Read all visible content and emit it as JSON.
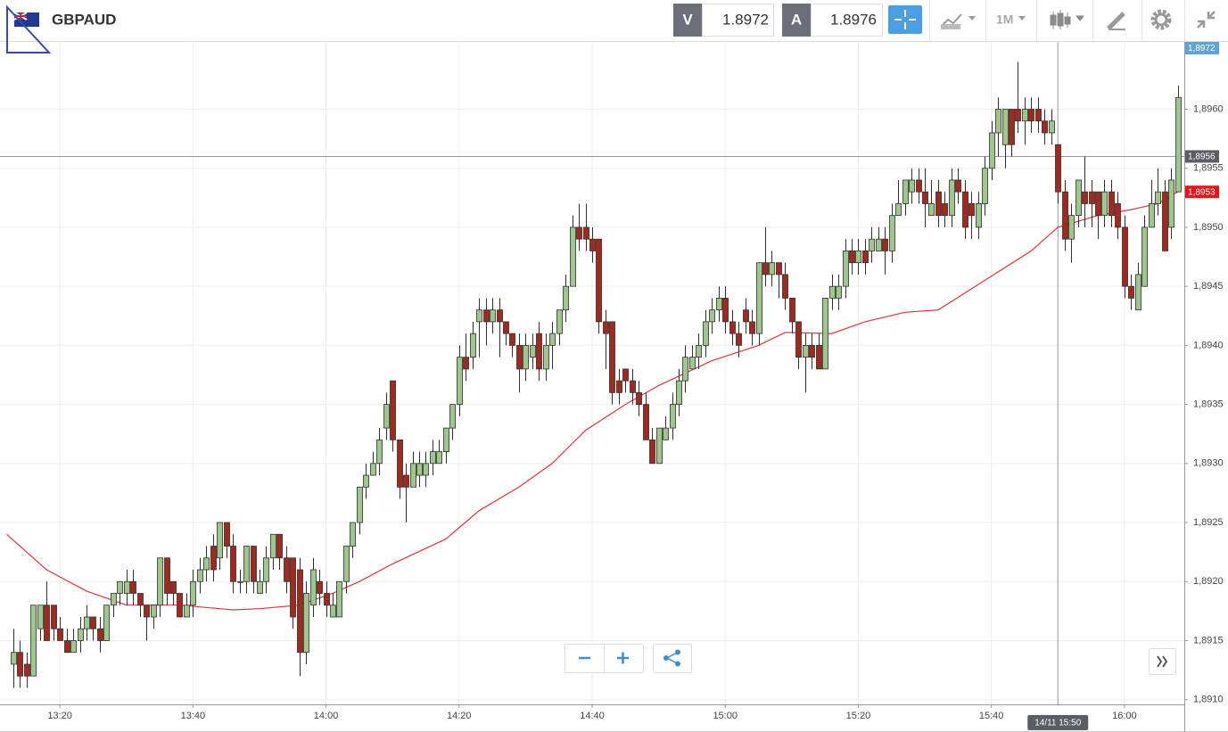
{
  "toolbar": {
    "symbol": "GBPAUD",
    "bid_label": "V",
    "bid": 1.8972,
    "ask_label": "A",
    "ask": 1.8976,
    "timeframe": "1M"
  },
  "chart_data": {
    "type": "candlestick",
    "up_color": "#9dc78b",
    "down_color": "#a3281d",
    "outline_color": "#2e2e2e",
    "grid": true,
    "x": [
      "13:13",
      "13:14",
      "13:15",
      "13:16",
      "13:17",
      "13:18",
      "13:19",
      "13:20",
      "13:21",
      "13:22",
      "13:23",
      "13:24",
      "13:25",
      "13:26",
      "13:27",
      "13:28",
      "13:29",
      "13:30",
      "13:31",
      "13:32",
      "13:33",
      "13:34",
      "13:35",
      "13:36",
      "13:37",
      "13:38",
      "13:39",
      "13:40",
      "13:41",
      "13:42",
      "13:43",
      "13:44",
      "13:45",
      "13:46",
      "13:47",
      "13:48",
      "13:49",
      "13:50",
      "13:51",
      "13:52",
      "13:53",
      "13:54",
      "13:55",
      "13:56",
      "13:57",
      "13:58",
      "13:59",
      "14:00",
      "14:01",
      "14:02",
      "14:03",
      "14:04",
      "14:05",
      "14:06",
      "14:07",
      "14:08",
      "14:09",
      "14:10",
      "14:11",
      "14:12",
      "14:13",
      "14:14",
      "14:15",
      "14:16",
      "14:17",
      "14:18",
      "14:19",
      "14:20",
      "14:21",
      "14:22",
      "14:23",
      "14:24",
      "14:25",
      "14:26",
      "14:27",
      "14:28",
      "14:29",
      "14:30",
      "14:31",
      "14:32",
      "14:33",
      "14:34",
      "14:35",
      "14:36",
      "14:37",
      "14:38",
      "14:39",
      "14:40",
      "14:41",
      "14:42",
      "14:43",
      "14:44",
      "14:45",
      "14:46",
      "14:47",
      "14:48",
      "14:49",
      "14:50",
      "14:51",
      "14:52",
      "14:53",
      "14:54",
      "14:55",
      "14:56",
      "14:57",
      "14:58",
      "14:59",
      "15:00",
      "15:01",
      "15:02",
      "15:03",
      "15:04",
      "15:05",
      "15:06",
      "15:07",
      "15:08",
      "15:09",
      "15:10",
      "15:11",
      "15:12",
      "15:13",
      "15:14",
      "15:15",
      "15:16",
      "15:17",
      "15:18",
      "15:19",
      "15:20",
      "15:21",
      "15:22",
      "15:23",
      "15:24",
      "15:25",
      "15:26",
      "15:27",
      "15:28",
      "15:29",
      "15:30",
      "15:31",
      "15:32",
      "15:33",
      "15:34",
      "15:35",
      "15:36",
      "15:37",
      "15:38",
      "15:39",
      "15:40",
      "15:41",
      "15:42",
      "15:43",
      "15:44",
      "15:45",
      "15:46",
      "15:47",
      "15:48",
      "15:49",
      "15:50",
      "15:51",
      "15:52",
      "15:53",
      "15:54",
      "15:55",
      "15:56",
      "15:57",
      "15:58",
      "15:59",
      "16:00",
      "16:01",
      "16:02",
      "16:03",
      "16:04",
      "16:05",
      "16:06",
      "16:07",
      "16:08"
    ],
    "open": [
      1.8913,
      1.8914,
      1.8913,
      1.8912,
      1.8916,
      1.8918,
      1.8918,
      1.8916,
      1.8915,
      1.8914,
      1.8915,
      1.8916,
      1.8917,
      1.8916,
      1.8915,
      1.8918,
      1.8919,
      1.8919,
      1.892,
      1.8919,
      1.8918,
      1.8917,
      1.8918,
      1.8922,
      1.892,
      1.8919,
      1.8917,
      1.8918,
      1.892,
      1.8921,
      1.8923,
      1.8922,
      1.8925,
      1.8923,
      1.892,
      1.892,
      1.8923,
      1.8919,
      1.892,
      1.8922,
      1.8924,
      1.8922,
      1.8922,
      1.8921,
      1.8914,
      1.8918,
      1.892,
      1.8919,
      1.8917,
      1.8917,
      1.892,
      1.8923,
      1.8925,
      1.8928,
      1.8929,
      1.893,
      1.8933,
      1.8937,
      1.8932,
      1.8929,
      1.8928,
      1.8929,
      1.8929,
      1.893,
      1.893,
      1.8931,
      1.8933,
      1.8935,
      1.8939,
      1.8939,
      1.8942,
      1.8943,
      1.8942,
      1.8943,
      1.8942,
      1.8941,
      1.894,
      1.8938,
      1.8939,
      1.8941,
      1.8938,
      1.894,
      1.8941,
      1.8943,
      1.8945,
      1.895,
      1.895,
      1.8949,
      1.8949,
      1.8942,
      1.8942,
      1.8937,
      1.8938,
      1.8937,
      1.8936,
      1.8935,
      1.8932,
      1.893,
      1.8932,
      1.8933,
      1.8935,
      1.8937,
      1.8938,
      1.8939,
      1.894,
      1.8942,
      1.8943,
      1.8944,
      1.8942,
      1.8941,
      1.8943,
      1.8942,
      1.8941,
      1.8947,
      1.8946,
      1.8947,
      1.8946,
      1.8944,
      1.8942,
      1.8939,
      1.894,
      1.894,
      1.8938,
      1.8944,
      1.8944,
      1.8945,
      1.8948,
      1.8947,
      1.8948,
      1.8948,
      1.8948,
      1.8949,
      1.8948,
      1.8951,
      1.8952,
      1.8953,
      1.8954,
      1.8953,
      1.8951,
      1.8953,
      1.8952,
      1.8951,
      1.8954,
      1.8953,
      1.8952,
      1.895,
      1.8952,
      1.8955,
      1.8958,
      1.8957,
      1.896,
      1.896,
      1.8959,
      1.896,
      1.896,
      1.8959,
      1.8958,
      1.8957,
      1.8953,
      1.8949,
      1.8951,
      1.8953,
      1.8953,
      1.8953,
      1.8951,
      1.8953,
      1.8952,
      1.895,
      1.8945,
      1.8943,
      1.8945,
      1.895,
      1.8952,
      1.8953,
      1.895,
      1.8953
    ],
    "high": [
      1.8916,
      1.8915,
      1.8914,
      1.8918,
      1.8918,
      1.892,
      1.8918,
      1.8917,
      1.8916,
      1.8916,
      1.8917,
      1.8918,
      1.8917,
      1.8917,
      1.8918,
      1.8919,
      1.892,
      1.8921,
      1.8921,
      1.8919,
      1.8918,
      1.8918,
      1.8922,
      1.8922,
      1.892,
      1.8919,
      1.8919,
      1.8921,
      1.8922,
      1.8923,
      1.8924,
      1.8925,
      1.8925,
      1.8924,
      1.8921,
      1.8923,
      1.8923,
      1.8921,
      1.8923,
      1.8924,
      1.8924,
      1.8923,
      1.8922,
      1.8922,
      1.892,
      1.8922,
      1.8921,
      1.892,
      1.8919,
      1.892,
      1.8923,
      1.8925,
      1.8928,
      1.893,
      1.8931,
      1.8933,
      1.8936,
      1.8937,
      1.8932,
      1.893,
      1.8931,
      1.8931,
      1.8931,
      1.8932,
      1.8932,
      1.8933,
      1.8935,
      1.894,
      1.8941,
      1.8942,
      1.8944,
      1.8944,
      1.8944,
      1.8944,
      1.8942,
      1.8941,
      1.8941,
      1.8941,
      1.8941,
      1.8942,
      1.8941,
      1.8942,
      1.8943,
      1.8946,
      1.8951,
      1.8952,
      1.8952,
      1.895,
      1.8949,
      1.8943,
      1.8942,
      1.8938,
      1.8938,
      1.8938,
      1.8937,
      1.8936,
      1.8933,
      1.8933,
      1.8934,
      1.8936,
      1.8938,
      1.894,
      1.894,
      1.8941,
      1.8943,
      1.8944,
      1.8945,
      1.8945,
      1.8943,
      1.8942,
      1.8944,
      1.8943,
      1.8947,
      1.895,
      1.8948,
      1.8947,
      1.8947,
      1.8944,
      1.8942,
      1.8941,
      1.8941,
      1.8941,
      1.8944,
      1.8946,
      1.8946,
      1.8949,
      1.8949,
      1.8949,
      1.8949,
      1.895,
      1.895,
      1.895,
      1.8952,
      1.8954,
      1.8954,
      1.8955,
      1.8955,
      1.8955,
      1.8954,
      1.8954,
      1.8953,
      1.8955,
      1.8955,
      1.8954,
      1.8953,
      1.8953,
      1.8956,
      1.8959,
      1.8961,
      1.896,
      1.896,
      1.8964,
      1.8961,
      1.8961,
      1.8961,
      1.896,
      1.896,
      1.8957,
      1.8954,
      1.8952,
      1.8954,
      1.8956,
      1.8954,
      1.8953,
      1.8954,
      1.8954,
      1.8953,
      1.8951,
      1.8946,
      1.8947,
      1.8951,
      1.8954,
      1.8955,
      1.8954,
      1.8955,
      1.8962
    ],
    "low": [
      1.8911,
      1.8911,
      1.8911,
      1.8912,
      1.8915,
      1.8915,
      1.8915,
      1.8915,
      1.8914,
      1.8914,
      1.8914,
      1.8915,
      1.8915,
      1.8914,
      1.8915,
      1.8917,
      1.8918,
      1.8918,
      1.8918,
      1.8917,
      1.8915,
      1.8916,
      1.8917,
      1.8918,
      1.8918,
      1.8917,
      1.8917,
      1.8917,
      1.8919,
      1.892,
      1.892,
      1.8921,
      1.8922,
      1.8919,
      1.8919,
      1.8919,
      1.8919,
      1.8919,
      1.8919,
      1.8921,
      1.8921,
      1.8919,
      1.8916,
      1.8912,
      1.8913,
      1.8917,
      1.8918,
      1.8917,
      1.8917,
      1.8917,
      1.8919,
      1.8922,
      1.8924,
      1.8927,
      1.8929,
      1.8929,
      1.8932,
      1.8931,
      1.8927,
      1.8925,
      1.8928,
      1.8928,
      1.8928,
      1.8929,
      1.893,
      1.893,
      1.8932,
      1.8934,
      1.8937,
      1.8938,
      1.8939,
      1.894,
      1.8941,
      1.8939,
      1.894,
      1.8939,
      1.8936,
      1.8937,
      1.8938,
      1.8937,
      1.8937,
      1.8938,
      1.894,
      1.8942,
      1.8945,
      1.8948,
      1.8948,
      1.8947,
      1.8941,
      1.8938,
      1.8935,
      1.8935,
      1.8936,
      1.8935,
      1.8934,
      1.8932,
      1.893,
      1.893,
      1.8932,
      1.8932,
      1.8934,
      1.8936,
      1.8938,
      1.8938,
      1.8939,
      1.8941,
      1.8942,
      1.8941,
      1.894,
      1.8939,
      1.8941,
      1.894,
      1.894,
      1.8945,
      1.8945,
      1.8944,
      1.8943,
      1.8941,
      1.8938,
      1.8936,
      1.8938,
      1.8938,
      1.8938,
      1.8943,
      1.8943,
      1.8944,
      1.8946,
      1.8946,
      1.8946,
      1.8947,
      1.8948,
      1.8946,
      1.8947,
      1.8951,
      1.8951,
      1.8952,
      1.8952,
      1.895,
      1.8951,
      1.895,
      1.895,
      1.895,
      1.8952,
      1.8949,
      1.8949,
      1.8949,
      1.8951,
      1.8954,
      1.8956,
      1.8955,
      1.8956,
      1.8958,
      1.8957,
      1.8958,
      1.8958,
      1.8957,
      1.8957,
      1.8952,
      1.8948,
      1.8947,
      1.895,
      1.895,
      1.895,
      1.8949,
      1.895,
      1.895,
      1.8949,
      1.8944,
      1.8943,
      1.8943,
      1.8945,
      1.895,
      1.8951,
      1.8948,
      1.8949,
      1.8953
    ],
    "close": [
      1.8914,
      1.8912,
      1.8912,
      1.8918,
      1.8918,
      1.8915,
      1.8916,
      1.8915,
      1.8914,
      1.8915,
      1.8916,
      1.8917,
      1.8916,
      1.8915,
      1.8918,
      1.8919,
      1.892,
      1.892,
      1.8919,
      1.8918,
      1.8917,
      1.8918,
      1.8922,
      1.8919,
      1.8919,
      1.8917,
      1.8918,
      1.892,
      1.8921,
      1.8922,
      1.8921,
      1.8925,
      1.8923,
      1.892,
      1.892,
      1.8923,
      1.892,
      1.892,
      1.8922,
      1.8924,
      1.8922,
      1.892,
      1.8917,
      1.8914,
      1.8919,
      1.8921,
      1.8919,
      1.8918,
      1.8918,
      1.892,
      1.8923,
      1.8925,
      1.8928,
      1.8929,
      1.893,
      1.8932,
      1.8935,
      1.8932,
      1.8928,
      1.8928,
      1.893,
      1.893,
      1.893,
      1.8931,
      1.8931,
      1.8933,
      1.8935,
      1.8939,
      1.8938,
      1.8941,
      1.8943,
      1.8942,
      1.8943,
      1.8942,
      1.8941,
      1.894,
      1.8938,
      1.894,
      1.894,
      1.8938,
      1.894,
      1.8941,
      1.8943,
      1.8945,
      1.895,
      1.8949,
      1.8949,
      1.8948,
      1.8942,
      1.8941,
      1.8936,
      1.8936,
      1.8937,
      1.8936,
      1.8935,
      1.8932,
      1.893,
      1.8933,
      1.8933,
      1.8935,
      1.8937,
      1.8939,
      1.8939,
      1.894,
      1.8942,
      1.8943,
      1.8944,
      1.8942,
      1.8941,
      1.894,
      1.8942,
      1.8941,
      1.8947,
      1.8946,
      1.8947,
      1.8946,
      1.8944,
      1.8942,
      1.8939,
      1.894,
      1.8939,
      1.8938,
      1.8944,
      1.8945,
      1.8945,
      1.8948,
      1.8947,
      1.8948,
      1.8947,
      1.8949,
      1.8949,
      1.8948,
      1.8951,
      1.8952,
      1.8954,
      1.8954,
      1.8953,
      1.8952,
      1.8952,
      1.8951,
      1.8951,
      1.8954,
      1.8953,
      1.895,
      1.8951,
      1.8952,
      1.8955,
      1.8958,
      1.896,
      1.896,
      1.8957,
      1.8959,
      1.896,
      1.8959,
      1.8959,
      1.8958,
      1.8959,
      1.8953,
      1.8949,
      1.8951,
      1.8954,
      1.8952,
      1.8952,
      1.8951,
      1.8953,
      1.8951,
      1.895,
      1.8945,
      1.8944,
      1.8946,
      1.895,
      1.8952,
      1.8953,
      1.8948,
      1.8954,
      1.8961
    ],
    "ma": {
      "color": "#e2343a",
      "x": [
        "13:12",
        "13:18",
        "13:24",
        "13:30",
        "13:38",
        "13:46",
        "13:50",
        "13:56",
        "14:01",
        "14:05",
        "14:10",
        "14:18",
        "14:23",
        "14:29",
        "14:34",
        "14:39",
        "14:45",
        "14:50",
        "14:58",
        "15:05",
        "15:09",
        "15:16",
        "15:21",
        "15:27",
        "15:32",
        "15:39",
        "15:46",
        "15:50",
        "15:56",
        "16:01",
        "16:05",
        "16:08"
      ],
      "values": [
        1.8924,
        1.8921,
        1.89192,
        1.8918,
        1.8918,
        1.89176,
        1.89177,
        1.8918,
        1.8919,
        1.892,
        1.89215,
        1.89236,
        1.8926,
        1.8928,
        1.893,
        1.89328,
        1.8935,
        1.89366,
        1.89387,
        1.894,
        1.89411,
        1.8941,
        1.8942,
        1.89428,
        1.8943,
        1.89455,
        1.8948,
        1.895,
        1.8951,
        1.89515,
        1.8952,
        1.8953
      ]
    },
    "xlim": [
      "13:11",
      "16:09"
    ],
    "xticks": [
      "13:20",
      "13:40",
      "14:00",
      "14:20",
      "14:40",
      "15:00",
      "15:20",
      "15:40",
      "16:00"
    ],
    "ylim": [
      1.89096,
      1.89657
    ],
    "yticks": [
      {
        "value": 1.891,
        "label": "1,8910"
      },
      {
        "value": 1.8915,
        "label": "1,8915"
      },
      {
        "value": 1.892,
        "label": "1,8920"
      },
      {
        "value": 1.8925,
        "label": "1,8925"
      },
      {
        "value": 1.893,
        "label": "1,8930"
      },
      {
        "value": 1.8935,
        "label": "1,8935"
      },
      {
        "value": 1.894,
        "label": "1,8940"
      },
      {
        "value": 1.8945,
        "label": "1,8945"
      },
      {
        "value": 1.895,
        "label": "1,8950"
      },
      {
        "value": 1.8955,
        "label": "1,8955"
      },
      {
        "value": 1.896,
        "label": "1,8960"
      }
    ],
    "bid_marker": {
      "value": 1.8972,
      "label": "1,8972",
      "color": "#5aa6dc"
    },
    "ma_marker": {
      "value": 1.8953,
      "label": "1,8953",
      "color": "#e8141c"
    },
    "crosshair": {
      "y": {
        "value": 1.8956,
        "label": "1,8956"
      },
      "x": {
        "value": "15:50",
        "label": "14/11 15:50"
      },
      "color": "#5a5d63"
    }
  }
}
